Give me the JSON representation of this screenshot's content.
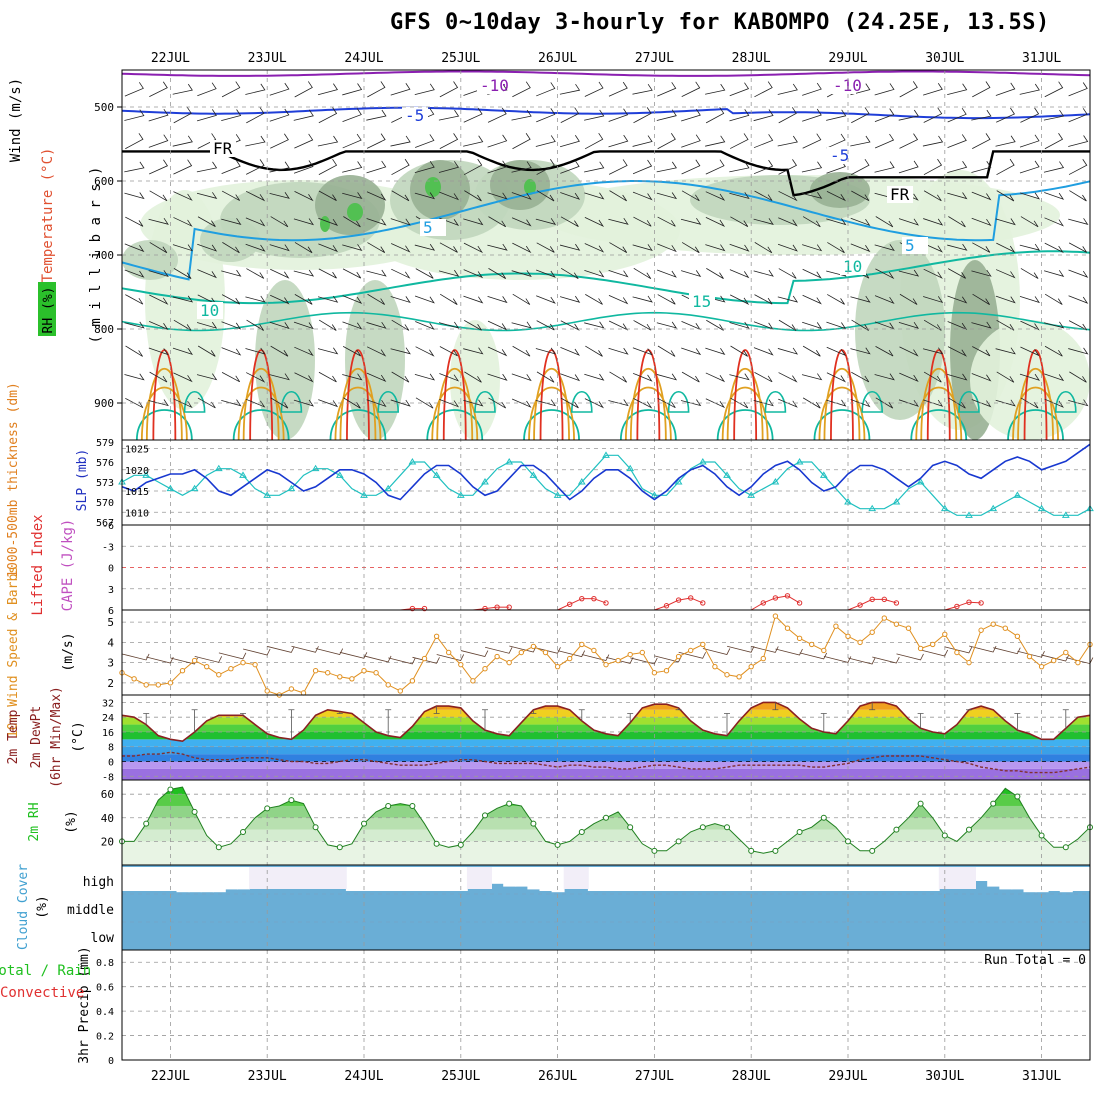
{
  "title": "GFS 0~10day 3-hourly for KABOMPO (24.25E, 13.5S)",
  "dates": [
    "22JUL",
    "23JUL",
    "24JUL",
    "25JUL",
    "26JUL",
    "27JUL",
    "28JUL",
    "29JUL",
    "30JUL",
    "31JUL"
  ],
  "panels": {
    "upper": {
      "ylabels": [
        "Wind (m/s)",
        "Temperature (°C)",
        "RH (%)"
      ],
      "axis_label": "( m i l l i b a r s )",
      "ticks": [
        "500",
        "600",
        "700",
        "800",
        "900"
      ],
      "labels": [
        "-10",
        "-10",
        "-5",
        "-5",
        "FR",
        "FR",
        "5",
        "5",
        "10",
        "10",
        "15"
      ],
      "colors": {
        "temp_m10": "#8a1fb0",
        "temp_m5": "#1f3ed8",
        "freezing": "#000000",
        "temp_5": "#1f9ee0",
        "temp_10": "#10b8a0",
        "warm": "#e0a020",
        "hot": "#e03020",
        "rh_light": "#e2f2dc",
        "rh_mid": "#c0d6bc",
        "rh_dark": "#98b094",
        "rh_sat": "#52c052"
      }
    },
    "slp": {
      "ylabel_left": "1000-500mb thickness (dm)",
      "ylabel_right": "SLP (mb)",
      "ticks_left": [
        "579",
        "576",
        "573",
        "570",
        "567"
      ],
      "ticks_right": [
        "1025",
        "1020",
        "1015",
        "1010"
      ]
    },
    "li": {
      "ylabel_left": "Lifted Index",
      "ylabel_right": "CAPE (J/kg)",
      "ticks": [
        "-6",
        "-3",
        "0",
        "3",
        "6"
      ]
    },
    "wind": {
      "ylabel": "10m Wind Speed & Barbs",
      "unit": "(m/s)",
      "ticks": [
        "5",
        "4",
        "3",
        "2"
      ]
    },
    "temp": {
      "ylabel": "2m Temp",
      "ylabel2": "2m DewPt",
      "ylabel3": "(6hr Min/Max)",
      "unit": "(°C)",
      "ticks": [
        "32",
        "24",
        "16",
        "8",
        "0",
        "-8"
      ]
    },
    "rh": {
      "ylabel": "2m RH",
      "unit": "(%)",
      "ticks": [
        "60",
        "40",
        "20"
      ]
    },
    "cloud": {
      "ylabel": "Cloud Cover",
      "unit": "(%)",
      "levels": [
        "high",
        "middle",
        "low"
      ]
    },
    "precip": {
      "ylabel": "3hr Precip (mm)",
      "legend_a": "Total / Rain",
      "legend_b": "Convective",
      "ticks": [
        "0.8",
        "0.6",
        "0.4",
        "0.2",
        "0"
      ],
      "run_total": "Run Total = 0"
    }
  },
  "chart_data": {
    "type": "line",
    "x_unit": "3-hourly steps from 21JUL 12Z",
    "x": [
      0,
      1,
      2,
      3,
      4,
      5,
      6,
      7,
      8,
      9,
      10,
      11,
      12,
      13,
      14,
      15,
      16,
      17,
      18,
      19,
      20,
      21,
      22,
      23,
      24,
      25,
      26,
      27,
      28,
      29,
      30,
      31,
      32,
      33,
      34,
      35,
      36,
      37,
      38,
      39,
      40,
      41,
      42,
      43,
      44,
      45,
      46,
      47,
      48,
      49,
      50,
      51,
      52,
      53,
      54,
      55,
      56,
      57,
      58,
      59,
      60,
      61,
      62,
      63,
      64,
      65,
      66,
      67,
      68,
      69,
      70,
      71,
      72,
      73,
      74,
      75,
      76,
      77,
      78,
      79,
      80
    ],
    "series": [
      {
        "name": "SLP (mb)",
        "values": [
          1016,
          1015,
          1017,
          1018,
          1019,
          1019,
          1020,
          1018,
          1015,
          1014,
          1016,
          1018,
          1020,
          1019,
          1017,
          1015,
          1016,
          1018,
          1020,
          1020,
          1019,
          1017,
          1014,
          1013,
          1016,
          1019,
          1021,
          1021,
          1019,
          1016,
          1014,
          1015,
          1018,
          1021,
          1021,
          1019,
          1016,
          1013,
          1015,
          1018,
          1020,
          1020,
          1018,
          1015,
          1013,
          1015,
          1018,
          1020,
          1021,
          1019,
          1016,
          1014,
          1016,
          1019,
          1021,
          1022,
          1020,
          1017,
          1015,
          1016,
          1019,
          1021,
          1021,
          1020,
          1018,
          1016,
          1018,
          1021,
          1022,
          1021,
          1019,
          1018,
          1020,
          1022,
          1023,
          1022,
          1020,
          1021,
          1022,
          1024,
          1026
        ]
      },
      {
        "name": "1000-500mb thickness (dm)",
        "values": [
          573,
          574,
          574,
          573,
          572,
          571,
          572,
          574,
          575,
          575,
          574,
          572,
          571,
          571,
          572,
          574,
          575,
          575,
          574,
          572,
          571,
          571,
          572,
          574,
          576,
          576,
          574,
          572,
          571,
          571,
          573,
          575,
          576,
          576,
          574,
          572,
          571,
          571,
          573,
          575,
          577,
          577,
          575,
          572,
          571,
          571,
          573,
          575,
          576,
          576,
          574,
          572,
          571,
          572,
          573,
          575,
          576,
          576,
          574,
          572,
          570,
          569,
          569,
          569,
          570,
          572,
          573,
          571,
          569,
          568,
          568,
          568,
          569,
          570,
          571,
          570,
          569,
          568,
          568,
          568,
          569
        ]
      },
      {
        "name": "10m Wind Speed",
        "values": [
          2.5,
          2.2,
          1.9,
          1.9,
          2.0,
          2.6,
          3.1,
          2.8,
          2.4,
          2.7,
          3.0,
          2.9,
          1.6,
          1.4,
          1.7,
          1.5,
          2.6,
          2.5,
          2.3,
          2.2,
          2.6,
          2.5,
          1.9,
          1.6,
          2.1,
          3.2,
          4.3,
          3.5,
          2.9,
          2.1,
          2.7,
          3.3,
          3.0,
          3.5,
          3.8,
          3.5,
          2.8,
          3.2,
          3.9,
          3.6,
          2.9,
          3.1,
          3.4,
          3.5,
          2.5,
          2.6,
          3.3,
          3.6,
          3.9,
          2.8,
          2.4,
          2.3,
          2.8,
          3.2,
          5.3,
          4.7,
          4.2,
          3.9,
          3.6,
          4.8,
          4.3,
          4.0,
          4.5,
          5.2,
          4.9,
          4.7,
          3.7,
          3.9,
          4.4,
          3.5,
          3.0,
          4.6,
          4.9,
          4.7,
          4.3,
          3.3,
          2.8,
          3.1,
          3.5,
          3.0,
          3.9
        ]
      },
      {
        "name": "2m Temp (°C)",
        "values": [
          25,
          24,
          20,
          14,
          12,
          11,
          16,
          22,
          25,
          25,
          25,
          20,
          15,
          13,
          12,
          17,
          25,
          28,
          27,
          26,
          21,
          16,
          14,
          13,
          19,
          27,
          30,
          30,
          29,
          22,
          17,
          15,
          14,
          21,
          28,
          30,
          30,
          28,
          22,
          17,
          15,
          14,
          21,
          29,
          31,
          31,
          29,
          22,
          17,
          15,
          14,
          22,
          29,
          32,
          32,
          29,
          23,
          18,
          16,
          15,
          22,
          30,
          32,
          32,
          30,
          23,
          18,
          16,
          15,
          20,
          28,
          30,
          28,
          22,
          17,
          15,
          12,
          12,
          18,
          24,
          25
        ]
      },
      {
        "name": "2m DewPt (°C)",
        "values": [
          3,
          3,
          4,
          4,
          5,
          4,
          2,
          1,
          1,
          1,
          2,
          2,
          2,
          1,
          0,
          0,
          -1,
          -1,
          0,
          1,
          1,
          0,
          -1,
          -2,
          -2,
          -2,
          -1,
          0,
          1,
          1,
          0,
          -1,
          -1,
          -1,
          -1,
          -2,
          -3,
          -2,
          -2,
          -3,
          -3,
          -4,
          -4,
          -3,
          -2,
          -2,
          -3,
          -4,
          -4,
          -4,
          -3,
          -2,
          -2,
          -2,
          -2,
          -2,
          -2,
          -3,
          -3,
          -2,
          -1,
          1,
          2,
          3,
          3,
          3,
          3,
          2,
          1,
          0,
          -1,
          -3,
          -4,
          -5,
          -5,
          -6,
          -6,
          -6,
          -5,
          -4,
          -3
        ]
      },
      {
        "name": "2m RH (%)",
        "values": [
          20,
          20,
          35,
          55,
          64,
          66,
          45,
          25,
          15,
          18,
          28,
          40,
          48,
          50,
          55,
          52,
          32,
          17,
          15,
          18,
          35,
          45,
          50,
          52,
          50,
          35,
          18,
          15,
          17,
          28,
          42,
          48,
          52,
          50,
          35,
          20,
          17,
          20,
          28,
          35,
          40,
          45,
          32,
          18,
          12,
          12,
          20,
          28,
          32,
          35,
          32,
          22,
          12,
          10,
          12,
          20,
          28,
          32,
          40,
          32,
          20,
          12,
          12,
          20,
          30,
          40,
          52,
          40,
          25,
          20,
          30,
          40,
          52,
          65,
          58,
          40,
          25,
          15,
          15,
          22,
          32
        ]
      },
      {
        "name": "Lifted Index",
        "values": [
          6,
          6,
          6,
          6,
          6,
          6,
          6,
          6,
          6,
          6,
          6,
          6,
          6,
          6,
          6,
          6,
          6,
          6,
          6,
          6,
          6,
          6,
          6,
          6,
          5.8,
          5.8,
          6,
          6,
          6,
          6,
          5.8,
          5.6,
          5.6,
          6,
          6,
          6,
          6,
          5.2,
          4.4,
          4.4,
          5,
          6,
          6,
          6,
          6,
          5.4,
          4.6,
          4.3,
          5,
          6,
          6,
          6,
          6,
          5,
          4.3,
          4.0,
          5,
          6,
          6,
          6,
          6,
          5.3,
          4.5,
          4.5,
          5,
          6,
          6,
          6,
          6,
          5.5,
          4.9,
          5,
          6,
          6,
          6,
          6,
          6,
          6,
          6,
          6,
          6
        ]
      },
      {
        "name": "3hr Precip (mm)",
        "values": [
          0,
          0,
          0,
          0,
          0,
          0,
          0,
          0,
          0,
          0,
          0,
          0,
          0,
          0,
          0,
          0,
          0,
          0,
          0,
          0,
          0,
          0,
          0,
          0,
          0,
          0,
          0,
          0,
          0,
          0,
          0,
          0,
          0,
          0,
          0,
          0,
          0,
          0,
          0,
          0,
          0,
          0,
          0,
          0,
          0,
          0,
          0,
          0,
          0,
          0,
          0,
          0,
          0,
          0,
          0,
          0,
          0,
          0,
          0,
          0,
          0,
          0,
          0,
          0,
          0,
          0,
          0,
          0,
          0,
          0,
          0,
          0,
          0,
          0,
          0,
          0,
          0,
          0,
          0,
          0,
          0
        ]
      }
    ],
    "cloud_high_pct": [
      0,
      0,
      0,
      0,
      0,
      10,
      10,
      10,
      10,
      20,
      20,
      85,
      85,
      85,
      85,
      90,
      90,
      90,
      90,
      0,
      0,
      0,
      0,
      0,
      0,
      0,
      0,
      0,
      0,
      70,
      70,
      40,
      30,
      30,
      20,
      0,
      10,
      70,
      70,
      0,
      0,
      0,
      0,
      0,
      0,
      0,
      0,
      0,
      0,
      0,
      0,
      0,
      0,
      0,
      0,
      0,
      0,
      0,
      0,
      0,
      0,
      0,
      0,
      0,
      0,
      0,
      0,
      0,
      85,
      85,
      80,
      50,
      30,
      20,
      20,
      10,
      10,
      0,
      10,
      0,
      0
    ],
    "cloud_low_pct": [
      100,
      100,
      100,
      100,
      100,
      100,
      100,
      100,
      100,
      100,
      100,
      100,
      100,
      100,
      100,
      100,
      100,
      100,
      100,
      100,
      100,
      100,
      100,
      100,
      100,
      100,
      100,
      100,
      100,
      100,
      100,
      100,
      100,
      100,
      100,
      100,
      100,
      100,
      100,
      100,
      100,
      100,
      100,
      100,
      100,
      100,
      100,
      100,
      100,
      100,
      100,
      100,
      100,
      100,
      100,
      100,
      100,
      100,
      100,
      100,
      100,
      100,
      100,
      100,
      100,
      100,
      100,
      100,
      100,
      100,
      100,
      100,
      100,
      100,
      100,
      100,
      100,
      100,
      100,
      100,
      100
    ],
    "run_total_mm": 0,
    "ylim_slp": [
      1007,
      1027
    ],
    "ylim_thickness": [
      567,
      579
    ],
    "ylim_wind": [
      1.5,
      5.5
    ],
    "ylim_temp": [
      -10,
      36
    ],
    "ylim_rh": [
      5,
      70
    ],
    "ylim_precip": [
      0,
      0.9
    ],
    "grid": true
  }
}
